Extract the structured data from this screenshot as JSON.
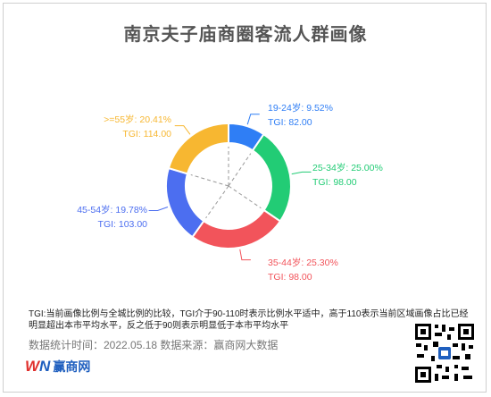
{
  "title": "南京夫子庙商圈客流人群画像",
  "chart_data": {
    "type": "donut",
    "title": "南京夫子庙商圈客流人群画像",
    "slices": [
      {
        "label": "19-24岁: 9.52%",
        "tgi": "TGI: 82.00",
        "value": 9.52,
        "color": "#2f7ef5"
      },
      {
        "label": "25-34岁: 25.00%",
        "tgi": "TGI: 98.00",
        "value": 25.0,
        "color": "#22cc75"
      },
      {
        "label": "35-44岁: 25.30%",
        "tgi": "TGI: 98.00",
        "value": 25.3,
        "color": "#f2545b"
      },
      {
        "label": "45-54岁: 19.78%",
        "tgi": "TGI: 103.00",
        "value": 19.78,
        "color": "#4c6ef0"
      },
      {
        "label": ">=55岁: 20.41%",
        "tgi": "TGI: 114.00",
        "value": 20.41,
        "color": "#f7b731"
      }
    ]
  },
  "note": "TGI:当前画像比例与全城比例的比较，TGI介于90-110时表示比例水平适中，高于110表示当前区域画像占比已经明显超出本市平均水平，反之低于90则表示明显低于本市平均水平",
  "footer": "数据统计时间：2022.05.18   数据来源：赢商网大数据",
  "logo": {
    "mark_w": "W",
    "mark_n": "N",
    "text": "赢商网"
  },
  "colors": {
    "title": "#555555",
    "footer": "#777777"
  }
}
